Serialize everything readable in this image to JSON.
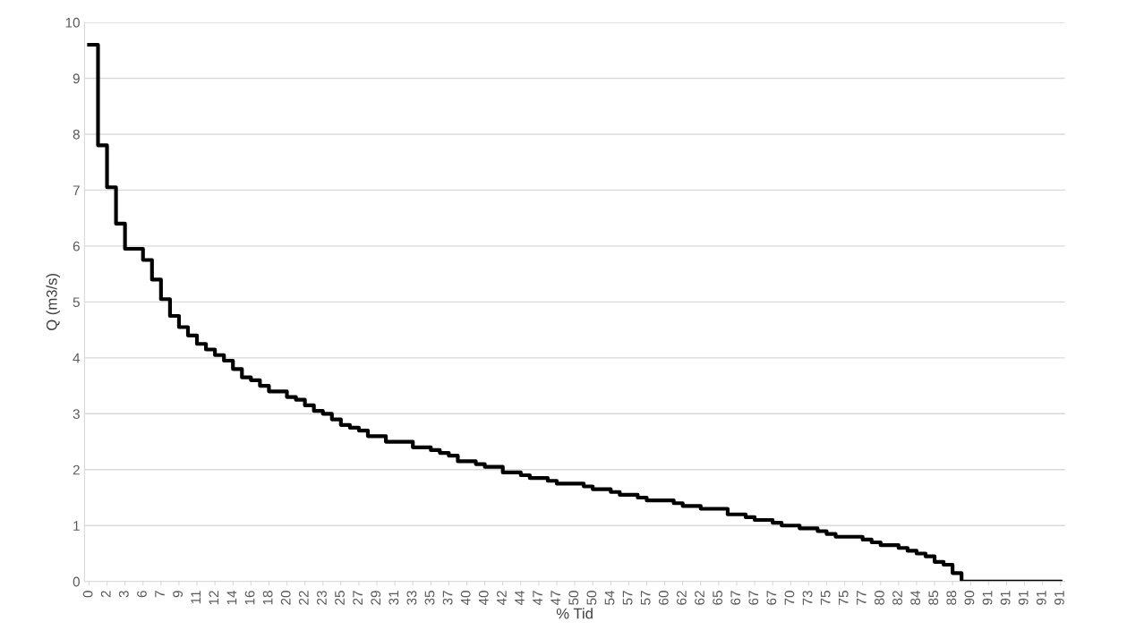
{
  "chart_data": {
    "type": "step",
    "xlabel": "% Tid",
    "ylabel": "Q (m3/s)",
    "categories": [
      "0",
      null,
      "2",
      null,
      "3",
      null,
      "6",
      null,
      "7",
      null,
      "9",
      null,
      "11",
      null,
      "12",
      null,
      "14",
      null,
      "16",
      null,
      "18",
      null,
      "20",
      null,
      "22",
      null,
      "23",
      null,
      "25",
      null,
      "27",
      null,
      "29",
      null,
      "31",
      null,
      "33",
      null,
      "35",
      null,
      "37",
      null,
      "40",
      null,
      "40",
      null,
      "42",
      null,
      "44",
      null,
      "47",
      null,
      "47",
      null,
      "50",
      null,
      "50",
      null,
      "54",
      null,
      "57",
      null,
      "57",
      null,
      "60",
      null,
      "62",
      null,
      "62",
      null,
      "65",
      null,
      "67",
      null,
      "67",
      null,
      "67",
      null,
      "70",
      null,
      "73",
      null,
      "75",
      null,
      "75",
      null,
      "77",
      null,
      "80",
      null,
      "82",
      null,
      "84",
      null,
      "85",
      null,
      "88",
      null,
      "90",
      null,
      "91",
      null,
      "91",
      null,
      "91",
      null,
      "91",
      null,
      "91"
    ],
    "series": [
      {
        "color": "#000000",
        "values": [
          9.6,
          7.8,
          7.05,
          6.4,
          5.95,
          5.95,
          5.75,
          5.4,
          5.05,
          4.75,
          4.55,
          4.4,
          4.25,
          4.15,
          4.05,
          3.95,
          3.8,
          3.65,
          3.6,
          3.5,
          3.4,
          3.4,
          3.3,
          3.25,
          3.15,
          3.05,
          3.0,
          2.9,
          2.8,
          2.75,
          2.7,
          2.6,
          2.6,
          2.5,
          2.5,
          2.5,
          2.4,
          2.4,
          2.35,
          2.3,
          2.25,
          2.15,
          2.15,
          2.1,
          2.05,
          2.05,
          1.95,
          1.95,
          1.9,
          1.85,
          1.85,
          1.8,
          1.75,
          1.75,
          1.75,
          1.7,
          1.65,
          1.65,
          1.6,
          1.55,
          1.55,
          1.5,
          1.45,
          1.45,
          1.45,
          1.4,
          1.35,
          1.35,
          1.3,
          1.3,
          1.3,
          1.2,
          1.2,
          1.15,
          1.1,
          1.1,
          1.05,
          1.0,
          1.0,
          0.95,
          0.95,
          0.9,
          0.85,
          0.8,
          0.8,
          0.8,
          0.75,
          0.7,
          0.65,
          0.65,
          0.6,
          0.55,
          0.5,
          0.45,
          0.35,
          0.3,
          0.15,
          0.0,
          0,
          0,
          0,
          0,
          0,
          0,
          0,
          0,
          0,
          0,
          0
        ]
      }
    ],
    "ylim": [
      0,
      10
    ],
    "yticks": [
      0,
      1,
      2,
      3,
      4,
      5,
      6,
      7,
      8,
      9,
      10
    ],
    "grid": "y",
    "legend": false,
    "marker": "none",
    "line_style": "solid"
  }
}
